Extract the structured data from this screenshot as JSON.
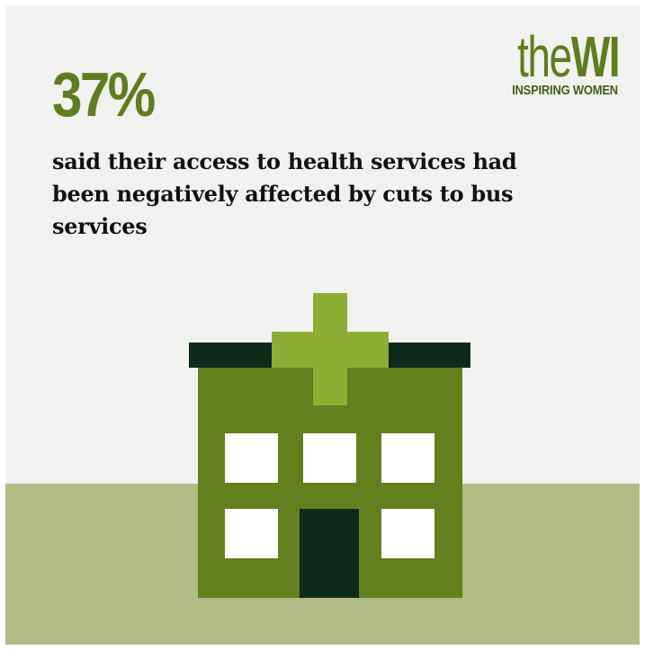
{
  "stat": {
    "value": "37%",
    "caption": "said their access to health services had been negatively affected by cuts to bus services"
  },
  "logo": {
    "word_the": "the",
    "word_wi": "WI",
    "tagline": "INSPIRING WOMEN"
  },
  "illustration": {
    "icon": "hospital-icon",
    "colors": {
      "building": "#62801e",
      "cross": "#8ead35",
      "roof": "#0e2a1b",
      "door": "#0e2a1b",
      "window": "#ffffff",
      "background": "#f1f1f0",
      "ground": "#b0bb85",
      "accent": "#5f7d1f"
    }
  }
}
